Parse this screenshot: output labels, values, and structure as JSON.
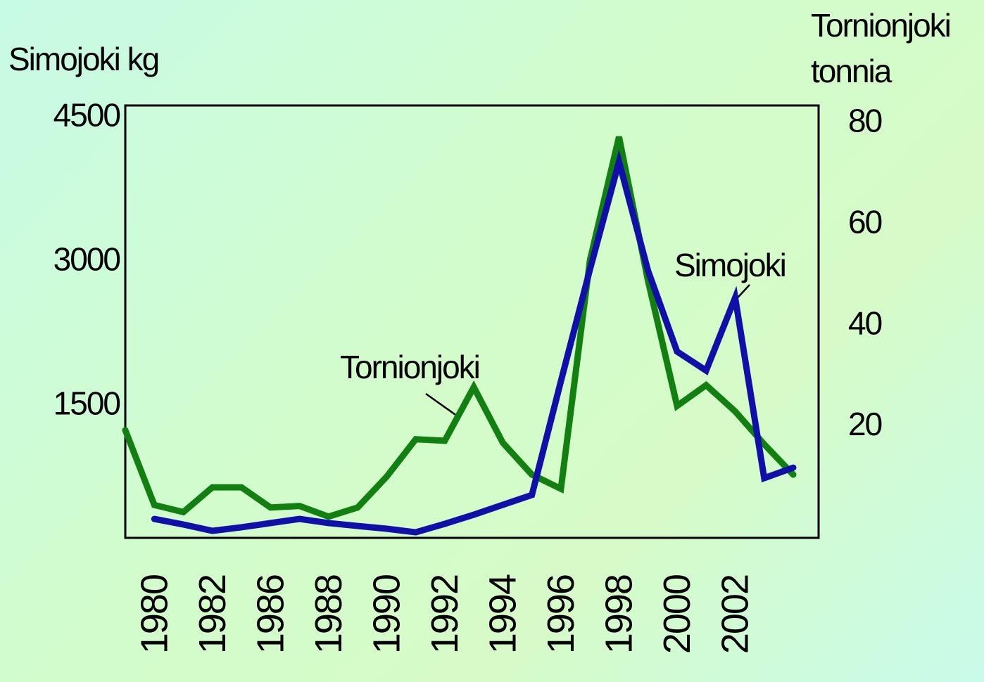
{
  "chart_data": {
    "type": "line",
    "y_axis_label": "Simojoki kg",
    "y2_axis_label_lines": [
      "Tornionjoki",
      "tonnia"
    ],
    "categories": [
      null,
      "1980",
      null,
      "1982",
      null,
      "1986",
      null,
      "1988",
      null,
      "1990",
      null,
      "1992",
      null,
      "1994",
      null,
      "1996",
      null,
      "1998",
      null,
      "2000",
      null,
      "2002",
      null,
      null
    ],
    "ylim": [
      100,
      4600
    ],
    "yticks": [
      1500,
      3000,
      4500
    ],
    "y2lim": [
      -2.5,
      83
    ],
    "y2ticks": [
      20,
      40,
      60,
      80
    ],
    "grid": false,
    "series": [
      {
        "name": "Tornionjoki",
        "color": "#118011",
        "axis": "y2",
        "values": [
          18.8,
          4.0,
          2.6,
          7.5,
          7.5,
          3.5,
          3.8,
          1.7,
          3.5,
          9.6,
          17,
          16.7,
          27.3,
          16.3,
          10,
          7.2,
          52.4,
          76.8,
          48.3,
          23.6,
          27.7,
          22.5,
          16,
          10
        ]
      },
      {
        "name": "Simojoki",
        "color": "#1010a8",
        "axis": "y",
        "values": [
          null,
          297,
          239,
          173,
          210,
          254,
          297,
          254,
          224,
          195,
          158,
          246,
          341,
          444,
          546,
          1731,
          2894,
          4014,
          2880,
          2039,
          1841,
          2600,
          722,
          831
        ]
      }
    ]
  }
}
